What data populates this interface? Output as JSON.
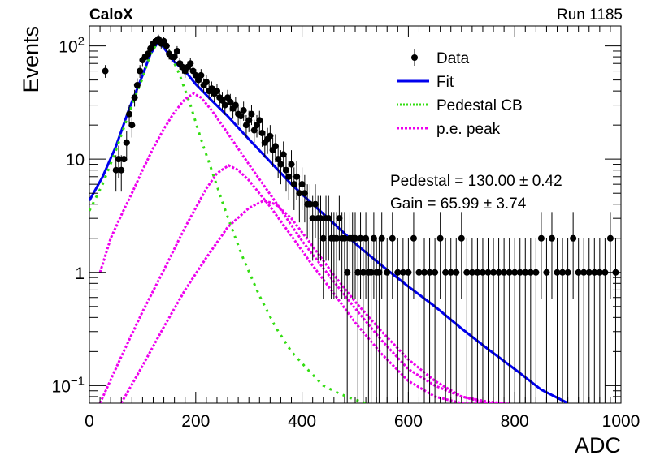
{
  "header": {
    "left": "CaloX",
    "right": "Run 1185"
  },
  "colors": {
    "data": "#000000",
    "fit": "#0000ee",
    "pedestal": "#33dd11",
    "pe": "#ee00ee"
  },
  "chart_data": {
    "type": "scatter",
    "title": "",
    "xlabel": "ADC",
    "ylabel": "Events",
    "xlim": [
      0,
      1000
    ],
    "ylim": [
      0.07,
      150
    ],
    "yscale": "log",
    "grid": false,
    "legend_position": "top-right",
    "x_ticks": [
      "0",
      "200",
      "400",
      "600",
      "800",
      "1000"
    ],
    "y_ticks": [
      {
        "value": 0.1,
        "base": "10",
        "exp": "−1"
      },
      {
        "value": 1,
        "label": "1"
      },
      {
        "value": 10,
        "label": "10"
      },
      {
        "value": 100,
        "base": "10",
        "exp": "2"
      }
    ],
    "legend": [
      {
        "label": "Data",
        "style": "marker"
      },
      {
        "label": "Fit",
        "style": "solid"
      },
      {
        "label": "Pedestal CB",
        "style": "dotted-green"
      },
      {
        "label": "p.e. peak",
        "style": "dotted-magenta"
      }
    ],
    "annotations": [
      "Pedestal = 130.00 ± 0.42",
      "Gain = 65.99 ± 3.74"
    ],
    "series": [
      {
        "name": "Data",
        "x": [
          30,
          50,
          55,
          60,
          65,
          70,
          75,
          80,
          85,
          90,
          95,
          100,
          105,
          110,
          115,
          120,
          125,
          130,
          135,
          140,
          145,
          150,
          155,
          160,
          165,
          170,
          175,
          180,
          185,
          190,
          195,
          200,
          205,
          210,
          215,
          220,
          225,
          230,
          235,
          240,
          245,
          250,
          255,
          260,
          265,
          270,
          275,
          280,
          285,
          290,
          295,
          300,
          305,
          310,
          315,
          320,
          325,
          330,
          335,
          340,
          345,
          350,
          355,
          360,
          365,
          370,
          375,
          380,
          385,
          390,
          395,
          400,
          405,
          410,
          415,
          420,
          425,
          430,
          435,
          440,
          445,
          450,
          455,
          460,
          465,
          470,
          475,
          480,
          485,
          490,
          495,
          500,
          505,
          510,
          515,
          520,
          525,
          530,
          535,
          540,
          545,
          550,
          560,
          570,
          580,
          590,
          600,
          610,
          620,
          630,
          640,
          650,
          660,
          670,
          680,
          690,
          700,
          710,
          720,
          730,
          740,
          750,
          760,
          770,
          780,
          790,
          800,
          810,
          820,
          830,
          840,
          850,
          860,
          870,
          880,
          890,
          900,
          910,
          920,
          930,
          940,
          950,
          960,
          970,
          980,
          990
        ],
        "y": [
          60,
          8,
          10,
          8,
          10,
          14,
          25,
          20,
          35,
          45,
          60,
          75,
          80,
          85,
          95,
          105,
          110,
          115,
          105,
          110,
          100,
          85,
          80,
          80,
          90,
          70,
          65,
          60,
          65,
          70,
          60,
          55,
          50,
          55,
          45,
          48,
          40,
          42,
          38,
          40,
          35,
          33,
          30,
          35,
          32,
          28,
          30,
          25,
          24,
          27,
          20,
          22,
          25,
          18,
          20,
          22,
          17,
          14,
          15,
          16,
          12,
          13,
          10,
          9,
          11,
          8,
          7,
          9,
          6,
          7,
          5,
          6,
          5,
          4,
          4,
          3,
          4,
          3,
          3,
          2,
          3,
          3,
          2,
          2,
          2,
          3,
          2,
          2,
          1,
          2,
          2,
          2,
          1,
          2,
          1,
          2,
          1,
          1,
          2,
          1,
          1,
          2,
          1,
          2,
          1,
          1,
          1,
          2,
          1,
          1,
          1,
          1,
          2,
          1,
          1,
          1,
          2,
          1,
          1,
          1,
          1,
          1,
          1,
          1,
          1,
          1,
          1,
          1,
          1,
          1,
          1,
          2,
          1,
          2,
          1,
          1,
          1,
          2,
          1,
          1,
          1,
          1,
          1,
          1,
          2,
          1
        ]
      },
      {
        "name": "Fit",
        "x": [
          0,
          25,
          50,
          75,
          100,
          115,
          130,
          145,
          160,
          180,
          200,
          230,
          260,
          300,
          340,
          380,
          420,
          460,
          500,
          550,
          600,
          650,
          700,
          750,
          800,
          850,
          900
        ],
        "y": [
          4.3,
          7,
          13,
          28,
          55,
          85,
          110,
          90,
          72,
          60,
          46,
          33,
          24,
          15,
          9.5,
          6,
          4,
          2.7,
          1.8,
          1.15,
          0.75,
          0.5,
          0.32,
          0.21,
          0.14,
          0.092,
          0.06
        ]
      },
      {
        "name": "Pedestal CB",
        "x": [
          0,
          25,
          50,
          75,
          100,
          115,
          130,
          150,
          170,
          190,
          210,
          230,
          250,
          270,
          290,
          320,
          350,
          380,
          410,
          440,
          470,
          500,
          520
        ],
        "y": [
          3.5,
          6,
          12,
          26,
          52,
          85,
          110,
          90,
          55,
          30,
          15,
          8,
          4.2,
          2.3,
          1.3,
          0.62,
          0.33,
          0.2,
          0.14,
          0.1,
          0.085,
          0.075,
          0.07
        ]
      },
      {
        "name": "p.e. peak",
        "x": [
          20,
          40,
          60,
          80,
          100,
          120,
          140,
          160,
          180,
          196,
          210,
          230,
          260,
          300,
          350,
          400,
          450,
          500,
          550,
          600,
          650,
          700,
          750,
          780
        ],
        "y": [
          1,
          2,
          3.2,
          5,
          8,
          12.5,
          18.5,
          26,
          34,
          38,
          35,
          27,
          17,
          9,
          4.2,
          1.9,
          0.95,
          0.48,
          0.25,
          0.14,
          0.1,
          0.08,
          0.072,
          0.07
        ]
      },
      {
        "name": "p.e. peak",
        "x": [
          20,
          60,
          100,
          140,
          180,
          220,
          240,
          262,
          280,
          300,
          340,
          380,
          420,
          460,
          500,
          550,
          600,
          650,
          700,
          750,
          780
        ],
        "y": [
          0.07,
          0.18,
          0.45,
          1.05,
          2.5,
          5.5,
          7.5,
          8.8,
          8,
          6.5,
          3.8,
          2.1,
          1.15,
          0.65,
          0.36,
          0.19,
          0.11,
          0.08,
          0.07,
          0.07,
          0.07
        ]
      },
      {
        "name": "p.e. peak",
        "x": [
          60,
          100,
          140,
          180,
          220,
          260,
          300,
          328,
          350,
          380,
          420,
          460,
          500,
          550,
          600,
          650,
          700,
          750,
          790
        ],
        "y": [
          0.07,
          0.15,
          0.33,
          0.7,
          1.35,
          2.5,
          3.7,
          4.3,
          4,
          3,
          1.7,
          0.95,
          0.55,
          0.3,
          0.17,
          0.11,
          0.08,
          0.07,
          0.07
        ]
      }
    ]
  }
}
